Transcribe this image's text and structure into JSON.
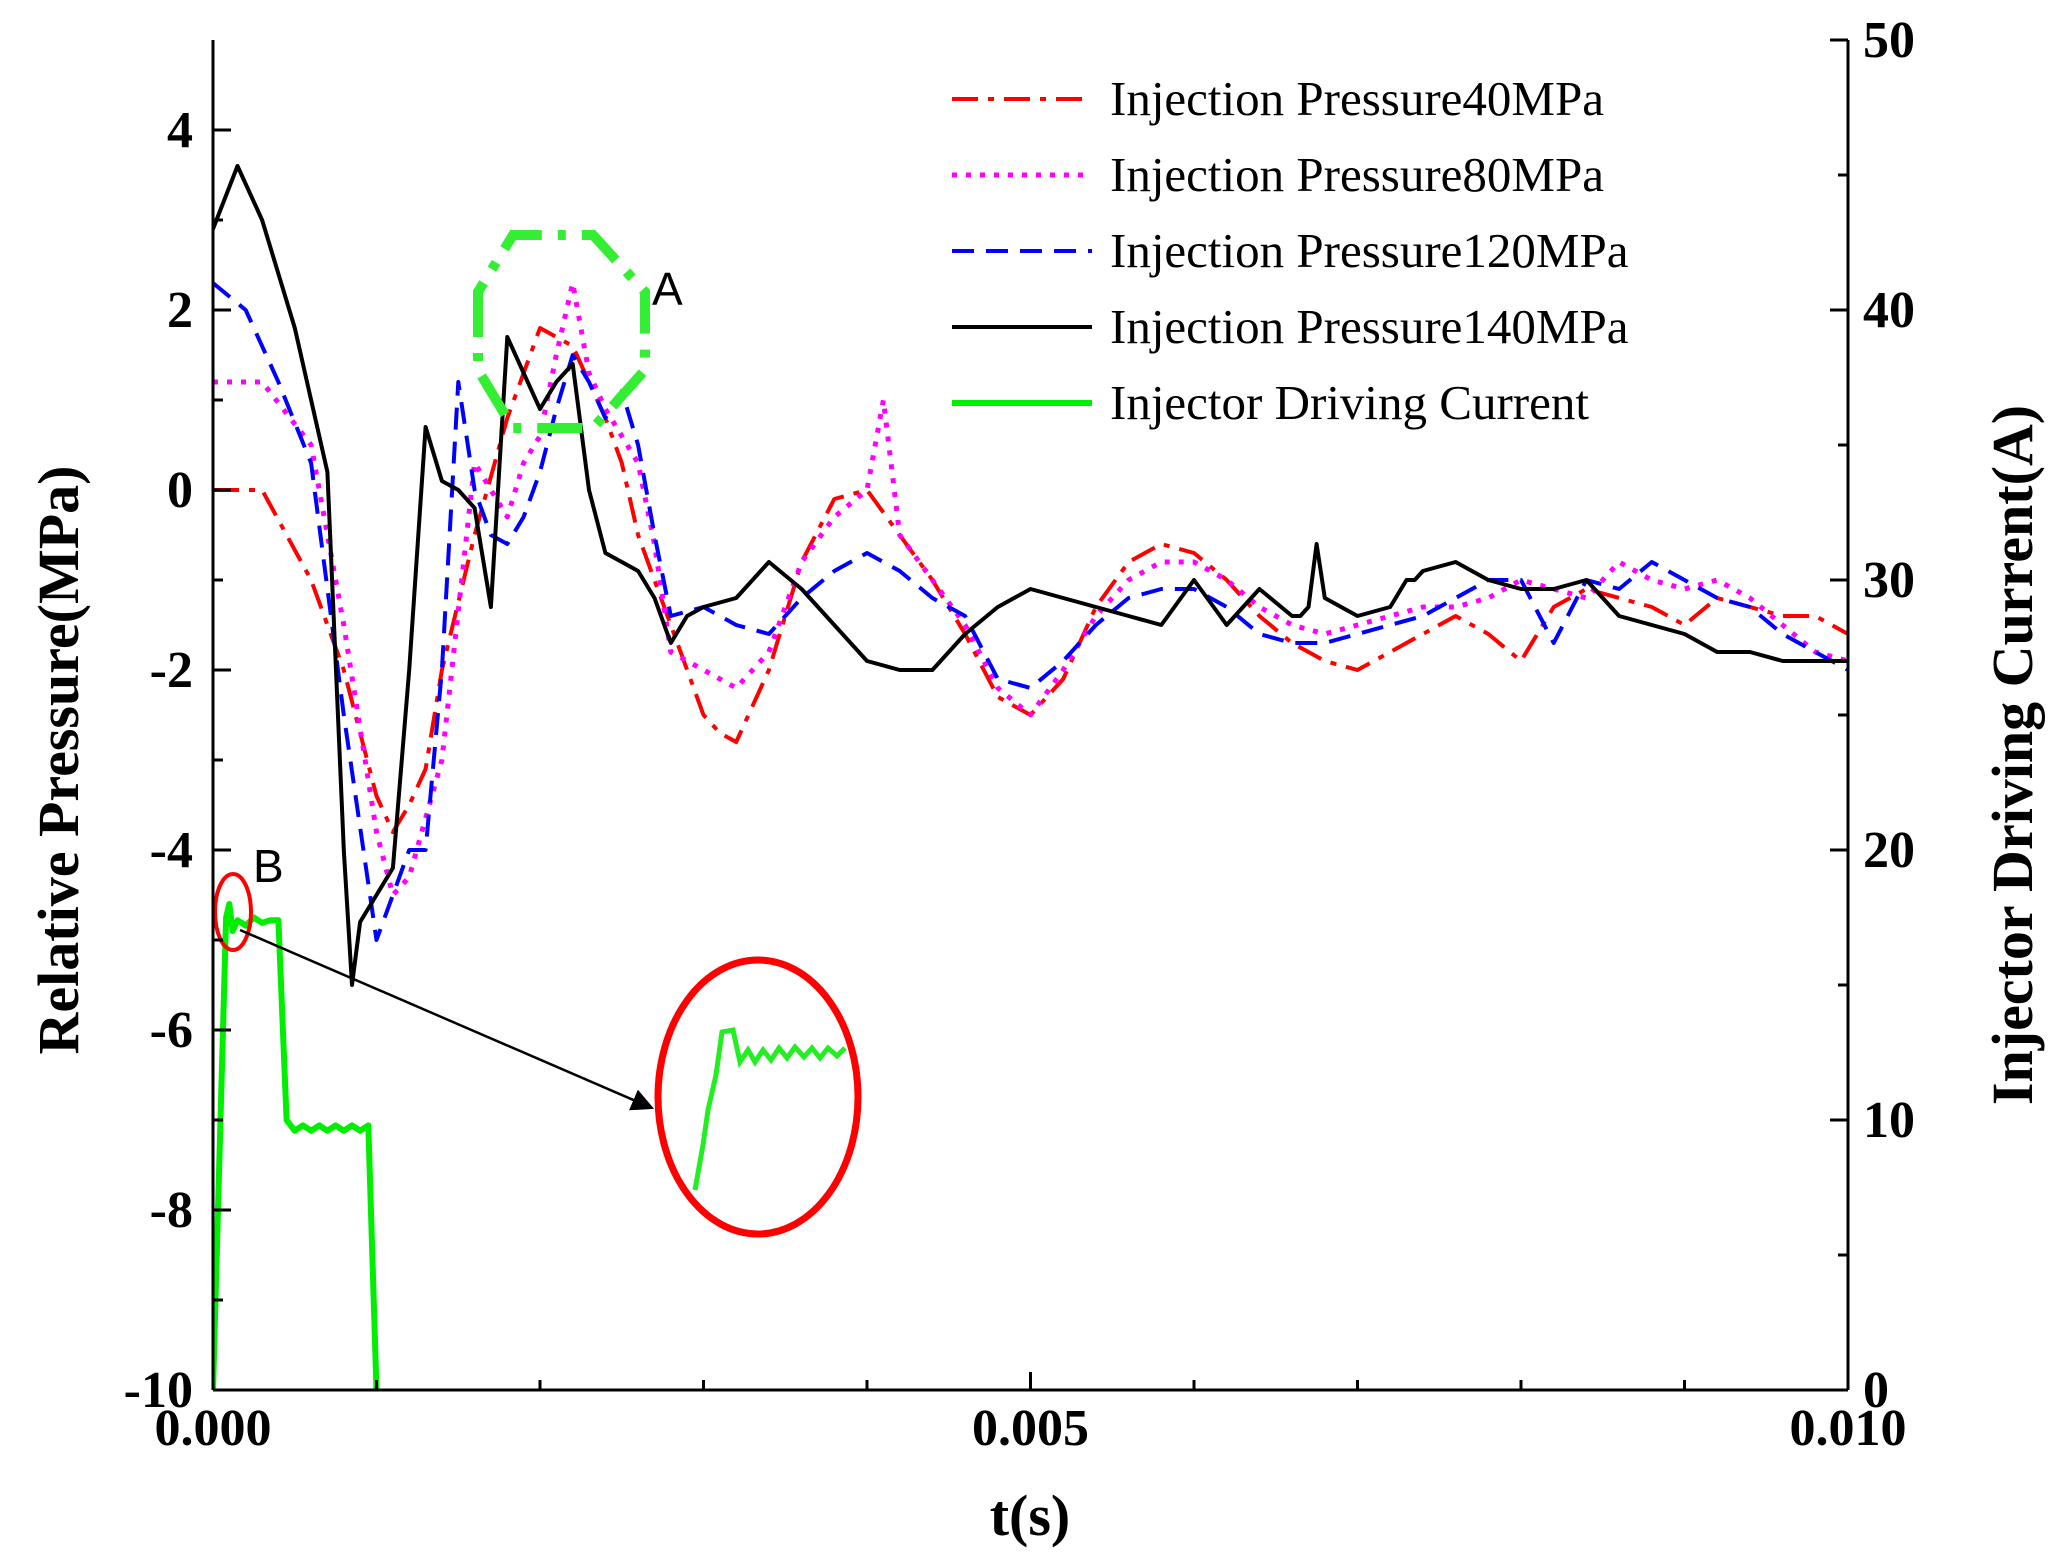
{
  "chart_data": {
    "type": "line",
    "title": "",
    "xlabel": "t(s)",
    "ylabel": "Relative Pressure(MPa)",
    "y2label": "Injector Driving Current(A)",
    "xlim": [
      0,
      0.01
    ],
    "ylim": [
      -10,
      5
    ],
    "y2lim": [
      0,
      50
    ],
    "grid": false,
    "legend_position": "top-right",
    "x_ticks": [
      {
        "value": 0,
        "label": "0.000"
      },
      {
        "value": 0.005,
        "label": "0.005"
      },
      {
        "value": 0.01,
        "label": "0.010"
      }
    ],
    "y_ticks": [
      {
        "value": -10,
        "label": "-10"
      },
      {
        "value": -8,
        "label": "-8"
      },
      {
        "value": -6,
        "label": "-6"
      },
      {
        "value": -4,
        "label": "-4"
      },
      {
        "value": -2,
        "label": "-2"
      },
      {
        "value": 0,
        "label": "0"
      },
      {
        "value": 2,
        "label": "2"
      },
      {
        "value": 4,
        "label": "4"
      }
    ],
    "y2_ticks": [
      {
        "value": 0,
        "label": "0"
      },
      {
        "value": 10,
        "label": "10"
      },
      {
        "value": 20,
        "label": "20"
      },
      {
        "value": 30,
        "label": "30"
      },
      {
        "value": 40,
        "label": "40"
      },
      {
        "value": 50,
        "label": "50"
      }
    ],
    "series": [
      {
        "name": "Injection Pressure40MPa",
        "axis": "left",
        "color": "#ff0000",
        "dash": "dashdot",
        "x": [
          0,
          0.0003,
          0.0006,
          0.0008,
          0.001,
          0.0011,
          0.0012,
          0.0013,
          0.0014,
          0.0016,
          0.0018,
          0.002,
          0.0022,
          0.0024,
          0.0025,
          0.0026,
          0.0028,
          0.003,
          0.0031,
          0.0032,
          0.0034,
          0.0036,
          0.0038,
          0.004,
          0.0042,
          0.0044,
          0.0046,
          0.0048,
          0.005,
          0.0052,
          0.0054,
          0.0056,
          0.0058,
          0.006,
          0.0062,
          0.0064,
          0.0066,
          0.0068,
          0.007,
          0.0072,
          0.0074,
          0.0076,
          0.0078,
          0.008,
          0.0082,
          0.0084,
          0.0086,
          0.0088,
          0.009,
          0.0092,
          0.0094,
          0.0096,
          0.0098,
          0.01
        ],
        "values": [
          0,
          0,
          -1.0,
          -2.0,
          -3.4,
          -3.8,
          -3.5,
          -3.1,
          -2.0,
          -0.5,
          0.8,
          1.8,
          1.6,
          0.8,
          0.3,
          -0.5,
          -1.5,
          -2.5,
          -2.7,
          -2.8,
          -2.0,
          -0.8,
          -0.1,
          0.0,
          -0.5,
          -1.0,
          -1.6,
          -2.3,
          -2.5,
          -2.1,
          -1.3,
          -0.8,
          -0.6,
          -0.7,
          -1.0,
          -1.4,
          -1.7,
          -1.9,
          -2.0,
          -1.8,
          -1.6,
          -1.4,
          -1.6,
          -1.9,
          -1.3,
          -1.1,
          -1.2,
          -1.3,
          -1.5,
          -1.2,
          -1.3,
          -1.4,
          -1.4,
          -1.6
        ]
      },
      {
        "name": "Injection Pressure80MPa",
        "axis": "left",
        "color": "#ff00ff",
        "dash": "dotted",
        "x": [
          0,
          0.0003,
          0.0006,
          0.0008,
          0.001,
          0.0011,
          0.0012,
          0.0014,
          0.0016,
          0.0018,
          0.0019,
          0.002,
          0.0021,
          0.0022,
          0.0023,
          0.0024,
          0.0026,
          0.0027,
          0.0028,
          0.003,
          0.0032,
          0.0034,
          0.0036,
          0.0038,
          0.004,
          0.0041,
          0.0042,
          0.0044,
          0.0046,
          0.0048,
          0.005,
          0.0052,
          0.0054,
          0.0056,
          0.0058,
          0.006,
          0.0062,
          0.0064,
          0.0066,
          0.0068,
          0.007,
          0.0072,
          0.0074,
          0.0076,
          0.0078,
          0.008,
          0.0082,
          0.0084,
          0.0086,
          0.0088,
          0.009,
          0.0092,
          0.0094,
          0.0096,
          0.0098,
          0.01
        ],
        "values": [
          1.2,
          1.2,
          0.5,
          -1.5,
          -3.8,
          -4.5,
          -4.3,
          -3.0,
          0.3,
          -0.3,
          0.3,
          0.6,
          1.5,
          2.3,
          1.3,
          0.9,
          0.3,
          -0.6,
          -1.8,
          -2.0,
          -2.2,
          -1.8,
          -0.8,
          -0.3,
          0.0,
          1.0,
          -0.5,
          -1.0,
          -1.5,
          -2.2,
          -2.5,
          -2.0,
          -1.4,
          -1.0,
          -0.8,
          -0.8,
          -1.0,
          -1.3,
          -1.5,
          -1.6,
          -1.5,
          -1.4,
          -1.3,
          -1.3,
          -1.2,
          -1.0,
          -1.1,
          -1.2,
          -0.8,
          -1.0,
          -1.1,
          -1.0,
          -1.2,
          -1.5,
          -1.8,
          -1.9
        ]
      },
      {
        "name": "Injection Pressure120MPa",
        "axis": "left",
        "color": "#0000ff",
        "dash": "dashed",
        "x": [
          0,
          0.0002,
          0.0004,
          0.0006,
          0.0008,
          0.001,
          0.0011,
          0.0012,
          0.0013,
          0.0014,
          0.0015,
          0.0016,
          0.0017,
          0.0018,
          0.0019,
          0.002,
          0.0021,
          0.0022,
          0.0023,
          0.0024,
          0.0025,
          0.0026,
          0.0027,
          0.0028,
          0.003,
          0.0032,
          0.0034,
          0.0036,
          0.0038,
          0.004,
          0.0042,
          0.0044,
          0.0046,
          0.0048,
          0.005,
          0.0052,
          0.0054,
          0.0056,
          0.0058,
          0.006,
          0.0062,
          0.0064,
          0.0066,
          0.0068,
          0.007,
          0.0072,
          0.0074,
          0.0076,
          0.0078,
          0.008,
          0.0082,
          0.0084,
          0.0086,
          0.0088,
          0.009,
          0.0092,
          0.0094,
          0.0096,
          0.0098,
          0.01
        ],
        "values": [
          2.3,
          2.0,
          1.2,
          0.3,
          -2.5,
          -5.0,
          -4.5,
          -4.0,
          -4.0,
          -2.0,
          1.2,
          0.0,
          -0.5,
          -0.6,
          -0.3,
          0.2,
          0.9,
          1.5,
          1.2,
          0.8,
          1.1,
          0.5,
          -0.5,
          -1.4,
          -1.3,
          -1.5,
          -1.6,
          -1.2,
          -0.9,
          -0.7,
          -0.9,
          -1.2,
          -1.4,
          -2.1,
          -2.2,
          -1.9,
          -1.5,
          -1.2,
          -1.1,
          -1.1,
          -1.3,
          -1.6,
          -1.7,
          -1.7,
          -1.6,
          -1.5,
          -1.4,
          -1.2,
          -1.0,
          -1.0,
          -1.7,
          -1.0,
          -1.1,
          -0.8,
          -1.0,
          -1.2,
          -1.3,
          -1.6,
          -1.8,
          -2.0
        ]
      },
      {
        "name": "Injection Pressure140MPa",
        "axis": "left",
        "color": "#000000",
        "dash": "solid",
        "x": [
          0,
          0.00015,
          0.0003,
          0.0005,
          0.0007,
          0.0008,
          0.00085,
          0.0009,
          0.001,
          0.0011,
          0.0012,
          0.0013,
          0.0014,
          0.0015,
          0.0016,
          0.0017,
          0.0018,
          0.0019,
          0.002,
          0.0021,
          0.0022,
          0.0023,
          0.0024,
          0.0025,
          0.0026,
          0.0027,
          0.0028,
          0.0029,
          0.003,
          0.0032,
          0.0034,
          0.0036,
          0.0038,
          0.004,
          0.0042,
          0.0044,
          0.0046,
          0.0048,
          0.005,
          0.0052,
          0.0054,
          0.0056,
          0.0058,
          0.006,
          0.0062,
          0.0064,
          0.0066,
          0.00665,
          0.0067,
          0.00675,
          0.0068,
          0.007,
          0.0072,
          0.0073,
          0.00735,
          0.0074,
          0.0076,
          0.0078,
          0.008,
          0.0082,
          0.0084,
          0.0086,
          0.0088,
          0.009,
          0.0092,
          0.0094,
          0.0096,
          0.0098,
          0.01
        ],
        "values": [
          2.9,
          3.6,
          3.0,
          1.8,
          0.2,
          -4.0,
          -5.5,
          -4.8,
          -4.5,
          -4.2,
          -2.0,
          0.7,
          0.1,
          0.0,
          -0.2,
          -1.3,
          1.7,
          1.3,
          0.9,
          1.2,
          1.4,
          0.0,
          -0.7,
          -0.8,
          -0.9,
          -1.2,
          -1.7,
          -1.4,
          -1.3,
          -1.2,
          -0.8,
          -1.1,
          -1.5,
          -1.9,
          -2.0,
          -2.0,
          -1.6,
          -1.3,
          -1.1,
          -1.2,
          -1.3,
          -1.4,
          -1.5,
          -1.0,
          -1.5,
          -1.1,
          -1.4,
          -1.4,
          -1.3,
          -0.6,
          -1.2,
          -1.4,
          -1.3,
          -1.0,
          -1.0,
          -0.9,
          -0.8,
          -1.0,
          -1.1,
          -1.1,
          -1.0,
          -1.4,
          -1.5,
          -1.6,
          -1.8,
          -1.8,
          -1.9,
          -1.9,
          -1.9
        ]
      },
      {
        "name": "Injector Driving Current",
        "axis": "right",
        "color": "#00ee00",
        "dash": "solid",
        "x": [
          0,
          8e-05,
          0.0001,
          0.00012,
          0.00015,
          0.0002,
          0.00025,
          0.0003,
          0.00035,
          0.0004,
          0.00045,
          0.0005,
          0.00055,
          0.0006,
          0.00065,
          0.0007,
          0.00075,
          0.0008,
          0.00085,
          0.0009,
          0.00095,
          0.001
        ],
        "values": [
          0,
          17.5,
          18.0,
          17.0,
          17.4,
          17.2,
          17.5,
          17.3,
          17.4,
          17.4,
          10.0,
          9.6,
          9.8,
          9.6,
          9.8,
          9.6,
          9.8,
          9.6,
          9.8,
          9.6,
          9.8,
          0
        ]
      }
    ],
    "annotations": [
      {
        "label": "A",
        "description": "green dash-dot octagon around 140MPa peak"
      },
      {
        "label": "B",
        "description": "red ellipse marking current onset, zoomed inset"
      }
    ]
  }
}
